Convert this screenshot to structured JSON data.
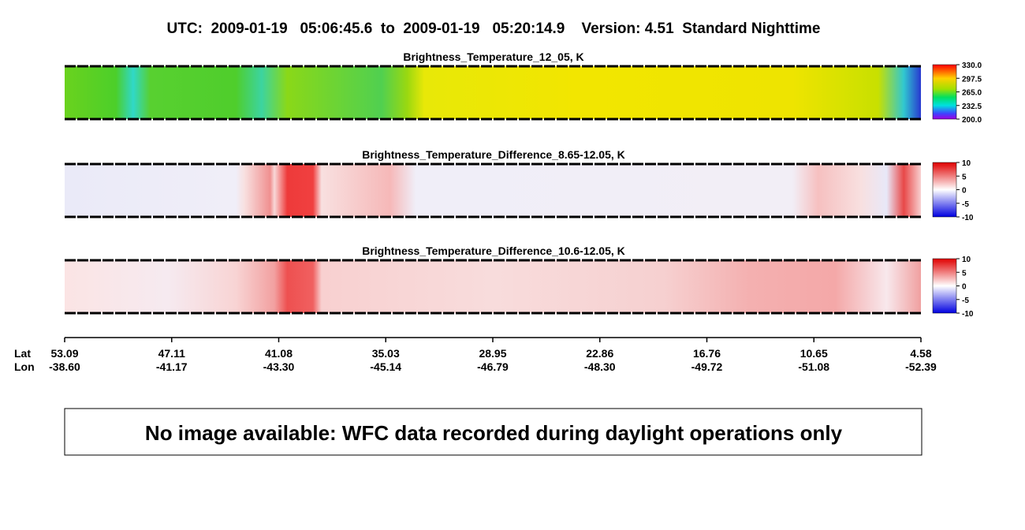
{
  "header": {
    "title": "UTC:  2009-01-19   05:06:45.6  to  2009-01-19   05:20:14.9    Version: 4.51  Standard Nighttime"
  },
  "panels": [
    {
      "title": "Brightness_Temperature_12_05, K",
      "colorbar_labels": [
        "330.0",
        "297.5",
        "265.0",
        "232.5",
        "200.0"
      ]
    },
    {
      "title": "Brightness_Temperature_Difference_8.65-12.05, K",
      "colorbar_labels": [
        "10",
        "5",
        "0",
        "-5",
        "-10"
      ]
    },
    {
      "title": "Brightness_Temperature_Difference_10.6-12.05, K",
      "colorbar_labels": [
        "10",
        "5",
        "0",
        "-5",
        "-10"
      ]
    }
  ],
  "axis": {
    "lat_label": "Lat",
    "lon_label": "Lon",
    "ticks": [
      {
        "lat": "53.09",
        "lon": "-38.60"
      },
      {
        "lat": "47.11",
        "lon": "-41.17"
      },
      {
        "lat": "41.08",
        "lon": "-43.30"
      },
      {
        "lat": "35.03",
        "lon": "-45.14"
      },
      {
        "lat": "28.95",
        "lon": "-46.79"
      },
      {
        "lat": "22.86",
        "lon": "-48.30"
      },
      {
        "lat": "16.76",
        "lon": "-49.72"
      },
      {
        "lat": "10.65",
        "lon": "-51.08"
      },
      {
        "lat": "4.58",
        "lon": "-52.39"
      }
    ]
  },
  "notice": "No image available: WFC data recorded during daylight operations only"
}
